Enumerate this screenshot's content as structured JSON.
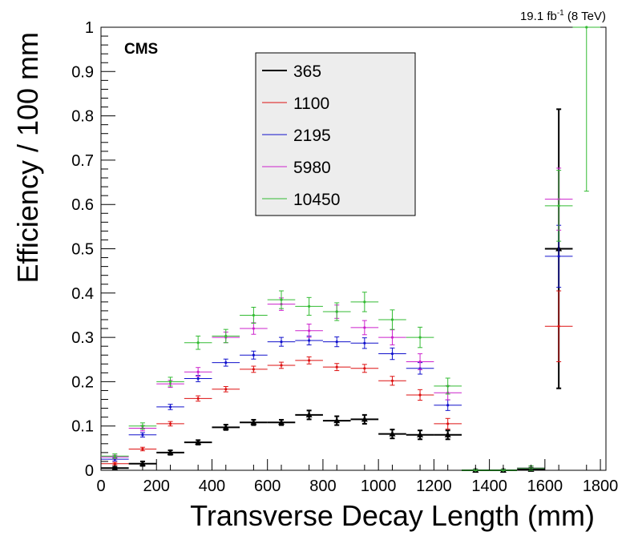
{
  "chart_data": {
    "type": "scatter",
    "corner_label": "CMS",
    "lumi_text": "19.1 fb",
    "lumi_superscript": "-1",
    "energy_text": " (8 TeV)",
    "xlabel": "Transverse Decay Length (mm)",
    "ylabel": "Efficiency / 100 mm",
    "xlim": [
      0,
      1820
    ],
    "ylim": [
      0,
      1
    ],
    "x_ticks": [
      "0",
      "200",
      "400",
      "600",
      "800",
      "1000",
      "1200",
      "1400",
      "1600",
      "1800"
    ],
    "y_ticks": [
      "0",
      "0.1",
      "0.2",
      "0.3",
      "0.4",
      "0.5",
      "0.6",
      "0.7",
      "0.8",
      "0.9",
      "1"
    ],
    "grid": false,
    "legend_position": "top-center",
    "bin_half_width": 50,
    "series": [
      {
        "name": "365",
        "color": "#000000",
        "marker": "triangle",
        "x": [
          50,
          150,
          250,
          350,
          450,
          550,
          650,
          750,
          850,
          950,
          1050,
          1150,
          1250,
          1350,
          1450,
          1550,
          1650
        ],
        "y": [
          0.005,
          0.015,
          0.04,
          0.063,
          0.097,
          0.108,
          0.108,
          0.125,
          0.112,
          0.115,
          0.082,
          0.08,
          0.08,
          0.0,
          0.0,
          0.002,
          0.5
        ],
        "err": [
          0.003,
          0.005,
          0.005,
          0.005,
          0.006,
          0.006,
          0.006,
          0.01,
          0.01,
          0.01,
          0.01,
          0.01,
          0.01,
          0.002,
          0.002,
          0.004,
          0.315
        ]
      },
      {
        "name": "1100",
        "color": "#dd1111",
        "x": [
          50,
          150,
          250,
          350,
          450,
          550,
          650,
          750,
          850,
          950,
          1050,
          1150,
          1250,
          1350,
          1450,
          1550,
          1650
        ],
        "y": [
          0.015,
          0.048,
          0.105,
          0.162,
          0.183,
          0.228,
          0.237,
          0.248,
          0.233,
          0.23,
          0.202,
          0.17,
          0.105,
          0.0,
          0.0,
          0.005,
          0.325
        ],
        "err": [
          0.003,
          0.004,
          0.005,
          0.006,
          0.006,
          0.007,
          0.007,
          0.008,
          0.008,
          0.009,
          0.01,
          0.012,
          0.012,
          0.002,
          0.002,
          0.005,
          0.08
        ]
      },
      {
        "name": "2195",
        "color": "#1111cc",
        "x": [
          50,
          150,
          250,
          350,
          450,
          550,
          650,
          750,
          850,
          950,
          1050,
          1150,
          1250,
          1350,
          1450,
          1550,
          1650
        ],
        "y": [
          0.025,
          0.08,
          0.143,
          0.207,
          0.243,
          0.26,
          0.29,
          0.293,
          0.29,
          0.287,
          0.263,
          0.23,
          0.147,
          0.0,
          0.0,
          0.005,
          0.483
        ],
        "err": [
          0.004,
          0.005,
          0.006,
          0.007,
          0.008,
          0.009,
          0.01,
          0.01,
          0.011,
          0.012,
          0.013,
          0.013,
          0.012,
          0.002,
          0.002,
          0.005,
          0.07
        ]
      },
      {
        "name": "5980",
        "color": "#cc22cc",
        "x": [
          50,
          150,
          250,
          350,
          450,
          550,
          650,
          750,
          850,
          950,
          1050,
          1150,
          1250,
          1350,
          1450,
          1550,
          1650
        ],
        "y": [
          0.03,
          0.095,
          0.195,
          0.222,
          0.3,
          0.32,
          0.375,
          0.315,
          0.358,
          0.322,
          0.3,
          0.245,
          0.175,
          0.0,
          0.0,
          0.005,
          0.612
        ],
        "err": [
          0.004,
          0.006,
          0.008,
          0.01,
          0.012,
          0.013,
          0.014,
          0.015,
          0.015,
          0.016,
          0.017,
          0.018,
          0.016,
          0.002,
          0.002,
          0.005,
          0.07
        ]
      },
      {
        "name": "10450",
        "color": "#33bb33",
        "x": [
          50,
          150,
          250,
          350,
          450,
          550,
          650,
          750,
          850,
          950,
          1050,
          1150,
          1250,
          1350,
          1450,
          1550,
          1650,
          1750
        ],
        "y": [
          0.032,
          0.1,
          0.2,
          0.288,
          0.303,
          0.35,
          0.385,
          0.37,
          0.358,
          0.38,
          0.34,
          0.3,
          0.19,
          0.0,
          0.0,
          0.005,
          0.597,
          1.0
        ],
        "err": [
          0.005,
          0.007,
          0.01,
          0.015,
          0.015,
          0.018,
          0.02,
          0.02,
          0.02,
          0.022,
          0.022,
          0.023,
          0.018,
          0.002,
          0.002,
          0.005,
          0.08,
          0.37
        ]
      }
    ]
  }
}
